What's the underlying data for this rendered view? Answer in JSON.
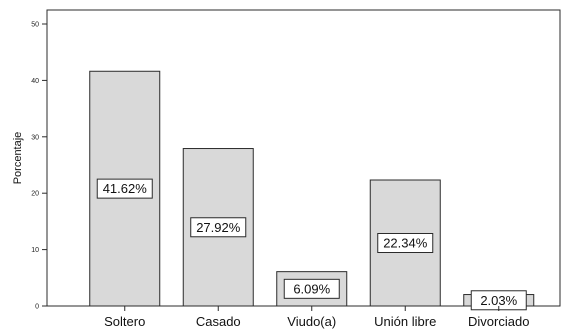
{
  "chart_data": {
    "type": "bar",
    "title": "",
    "xlabel": "",
    "ylabel": "Porcentaje",
    "ylim": [
      0,
      50
    ],
    "yticks": [
      0,
      10,
      20,
      30,
      40,
      50
    ],
    "grid": false,
    "categories": [
      "Soltero",
      "Casado",
      "Viudo(a)",
      "Unión libre",
      "Divorciado"
    ],
    "values": [
      41.62,
      27.92,
      6.09,
      22.34,
      2.03
    ],
    "data_labels": [
      "41.62%",
      "27.92%",
      "6.09%",
      "22.34%",
      "2.03%"
    ],
    "colors": {
      "bar_fill": "#d9d9d9",
      "bar_stroke": "#2b2b2b",
      "axis": "#2b2b2b",
      "label_box_fill": "#ffffff"
    }
  }
}
